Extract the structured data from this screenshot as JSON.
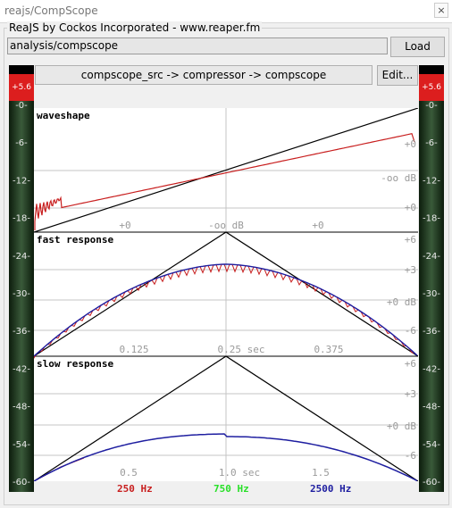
{
  "window": {
    "title": "reajs/CompScope",
    "close_glyph": "×"
  },
  "header": {
    "group_label": "ReaJS by Cockos Incorporated - www.reaper.fm",
    "path_value": "analysis/compscope",
    "load_label": "Load"
  },
  "chain": {
    "text": "compscope_src -> compressor -> compscope",
    "edit_label": "Edit..."
  },
  "meters": {
    "peak_left": "+5.6",
    "peak_right": "+5.6",
    "scale": [
      "-0-",
      "-6-",
      "-12-",
      "-18-",
      "-24-",
      "-30-",
      "-36-",
      "-42-",
      "-48-",
      "-54-",
      "-60-"
    ],
    "peak_color": "#dc1e1e"
  },
  "panels": {
    "waveshape": {
      "title": "waveshape",
      "right_labels": [
        "+0",
        "-oo dB",
        "+0"
      ],
      "bottom_labels": [
        "+0",
        "-oo dB",
        "+0"
      ]
    },
    "fast": {
      "title": "fast response",
      "right_labels": [
        "+6",
        "+3",
        "+0 dB",
        "-6"
      ],
      "bottom_labels": [
        "0.125",
        "0.25 sec",
        "0.375"
      ]
    },
    "slow": {
      "title": "slow response",
      "right_labels": [
        "+6",
        "+3",
        "+0 dB",
        "-6"
      ],
      "bottom_labels": [
        "0.5",
        "1.0 sec",
        "1.5"
      ]
    }
  },
  "legend": [
    {
      "label": "250 Hz",
      "color": "#c81e1e"
    },
    {
      "label": "750 Hz",
      "color": "#28e028"
    },
    {
      "label": "2500 Hz",
      "color": "#1e1ea0"
    }
  ],
  "colors": {
    "ref_line": "#000000",
    "red_trace": "#c81e1e",
    "blue_trace": "#1e1ea0",
    "grid": "#c4c4c4",
    "label": "#9a9a9a"
  }
}
